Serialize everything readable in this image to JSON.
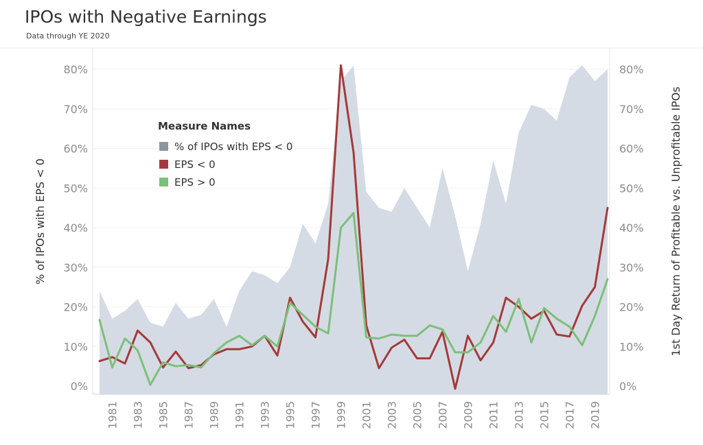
{
  "header": {
    "title": "IPOs with Negative Earnings",
    "subtitle": "Data through YE 2020"
  },
  "chart_data": {
    "type": "line",
    "title": "IPOs with Negative Earnings",
    "subtitle": "Data through YE 2020",
    "x": [
      1980,
      1981,
      1982,
      1983,
      1984,
      1985,
      1986,
      1987,
      1988,
      1989,
      1990,
      1991,
      1992,
      1993,
      1994,
      1995,
      1996,
      1997,
      1998,
      1999,
      2000,
      2001,
      2002,
      2003,
      2004,
      2005,
      2006,
      2007,
      2008,
      2009,
      2010,
      2011,
      2012,
      2013,
      2014,
      2015,
      2016,
      2017,
      2018,
      2019,
      2020
    ],
    "x_tick_labels": [
      "1981",
      "1983",
      "1985",
      "1987",
      "1989",
      "1991",
      "1993",
      "1995",
      "1997",
      "1999",
      "2001",
      "2003",
      "2005",
      "2007",
      "2009",
      "2011",
      "2013",
      "2015",
      "2017",
      "2019"
    ],
    "ylabel_left": "% of IPOs with EPS < 0",
    "ylabel_right": "1st Day Return of Profitable vs. Unprofitable IPOs",
    "ylim": [
      0,
      0.8
    ],
    "y_ticks": [
      "0%",
      "10%",
      "20%",
      "30%",
      "40%",
      "50%",
      "60%",
      "70%",
      "80%"
    ],
    "legend": {
      "title": "Measure Names",
      "position": "upper-left"
    },
    "series": [
      {
        "name": "% of IPOs with EPS < 0",
        "kind": "area",
        "color": "#d5dbe4",
        "values": [
          0.24,
          0.17,
          0.19,
          0.22,
          0.16,
          0.15,
          0.21,
          0.17,
          0.18,
          0.22,
          0.15,
          0.24,
          0.29,
          0.28,
          0.26,
          0.3,
          0.41,
          0.36,
          0.46,
          0.77,
          0.81,
          0.49,
          0.45,
          0.44,
          0.5,
          0.45,
          0.4,
          0.55,
          0.43,
          0.29,
          0.41,
          0.57,
          0.46,
          0.64,
          0.71,
          0.7,
          0.67,
          0.78,
          0.81,
          0.77,
          0.8
        ]
      },
      {
        "name": "EPS < 0",
        "kind": "line",
        "color": "#a33a3a",
        "values": [
          0.063,
          0.073,
          0.057,
          0.14,
          0.11,
          0.047,
          0.087,
          0.045,
          0.053,
          0.08,
          0.093,
          0.093,
          0.1,
          0.127,
          0.077,
          0.223,
          0.163,
          0.123,
          0.32,
          0.81,
          0.59,
          0.153,
          0.045,
          0.097,
          0.117,
          0.07,
          0.07,
          0.137,
          -0.007,
          0.127,
          0.065,
          0.11,
          0.223,
          0.2,
          0.17,
          0.19,
          0.13,
          0.125,
          0.203,
          0.25,
          0.45
        ]
      },
      {
        "name": "EPS > 0",
        "kind": "line",
        "color": "#7cbf7a",
        "values": [
          0.167,
          0.047,
          0.12,
          0.09,
          0.003,
          0.06,
          0.05,
          0.053,
          0.047,
          0.083,
          0.11,
          0.127,
          0.103,
          0.127,
          0.1,
          0.21,
          0.18,
          0.15,
          0.133,
          0.4,
          0.437,
          0.123,
          0.12,
          0.13,
          0.127,
          0.127,
          0.153,
          0.143,
          0.085,
          0.085,
          0.11,
          0.177,
          0.137,
          0.22,
          0.11,
          0.197,
          0.17,
          0.15,
          0.103,
          0.177,
          0.27
        ]
      }
    ]
  }
}
